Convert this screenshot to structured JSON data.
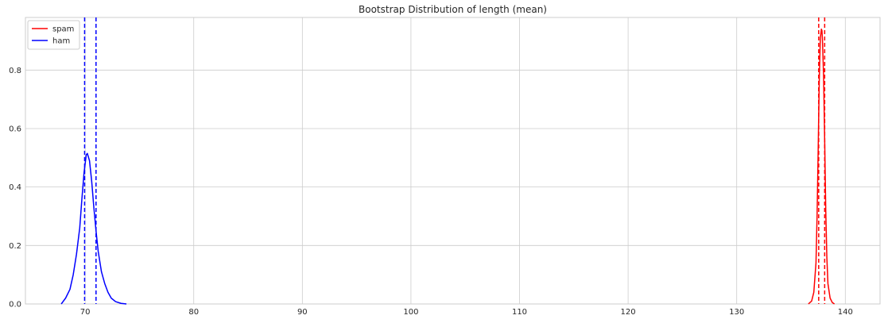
{
  "chart_data": {
    "type": "line",
    "title": "Bootstrap Distribution of length (mean)",
    "xlabel": "",
    "ylabel": "",
    "xlim": [
      64.5,
      143.2
    ],
    "ylim": [
      0,
      0.98
    ],
    "xticks": [
      70,
      80,
      90,
      100,
      110,
      120,
      130,
      140
    ],
    "yticks": [
      0.0,
      0.2,
      0.4,
      0.6,
      0.8
    ],
    "grid": true,
    "legend": "top-left",
    "series": [
      {
        "name": "spam",
        "color": "#ff0000",
        "x": [
          136.6,
          136.9,
          137.1,
          137.3,
          137.4,
          137.5,
          137.6,
          137.7,
          137.8,
          137.85,
          137.9,
          138.0,
          138.1,
          138.2,
          138.3,
          138.4,
          138.6,
          138.8,
          139.0
        ],
        "y": [
          0.0,
          0.01,
          0.04,
          0.14,
          0.3,
          0.52,
          0.76,
          0.91,
          0.94,
          0.935,
          0.9,
          0.78,
          0.56,
          0.32,
          0.16,
          0.07,
          0.02,
          0.005,
          0.0
        ],
        "ci": [
          137.55,
          138.1
        ]
      },
      {
        "name": "ham",
        "color": "#0000ff",
        "x": [
          67.8,
          68.2,
          68.6,
          68.9,
          69.2,
          69.5,
          69.7,
          69.9,
          70.1,
          70.2,
          70.4,
          70.6,
          70.8,
          71.0,
          71.2,
          71.5,
          71.8,
          72.1,
          72.4,
          72.8,
          73.3,
          73.8
        ],
        "y": [
          0.0,
          0.02,
          0.05,
          0.1,
          0.17,
          0.26,
          0.36,
          0.45,
          0.51,
          0.515,
          0.49,
          0.42,
          0.33,
          0.25,
          0.18,
          0.11,
          0.07,
          0.04,
          0.02,
          0.008,
          0.002,
          0.0
        ],
        "ci": [
          69.95,
          71.0
        ]
      }
    ]
  }
}
